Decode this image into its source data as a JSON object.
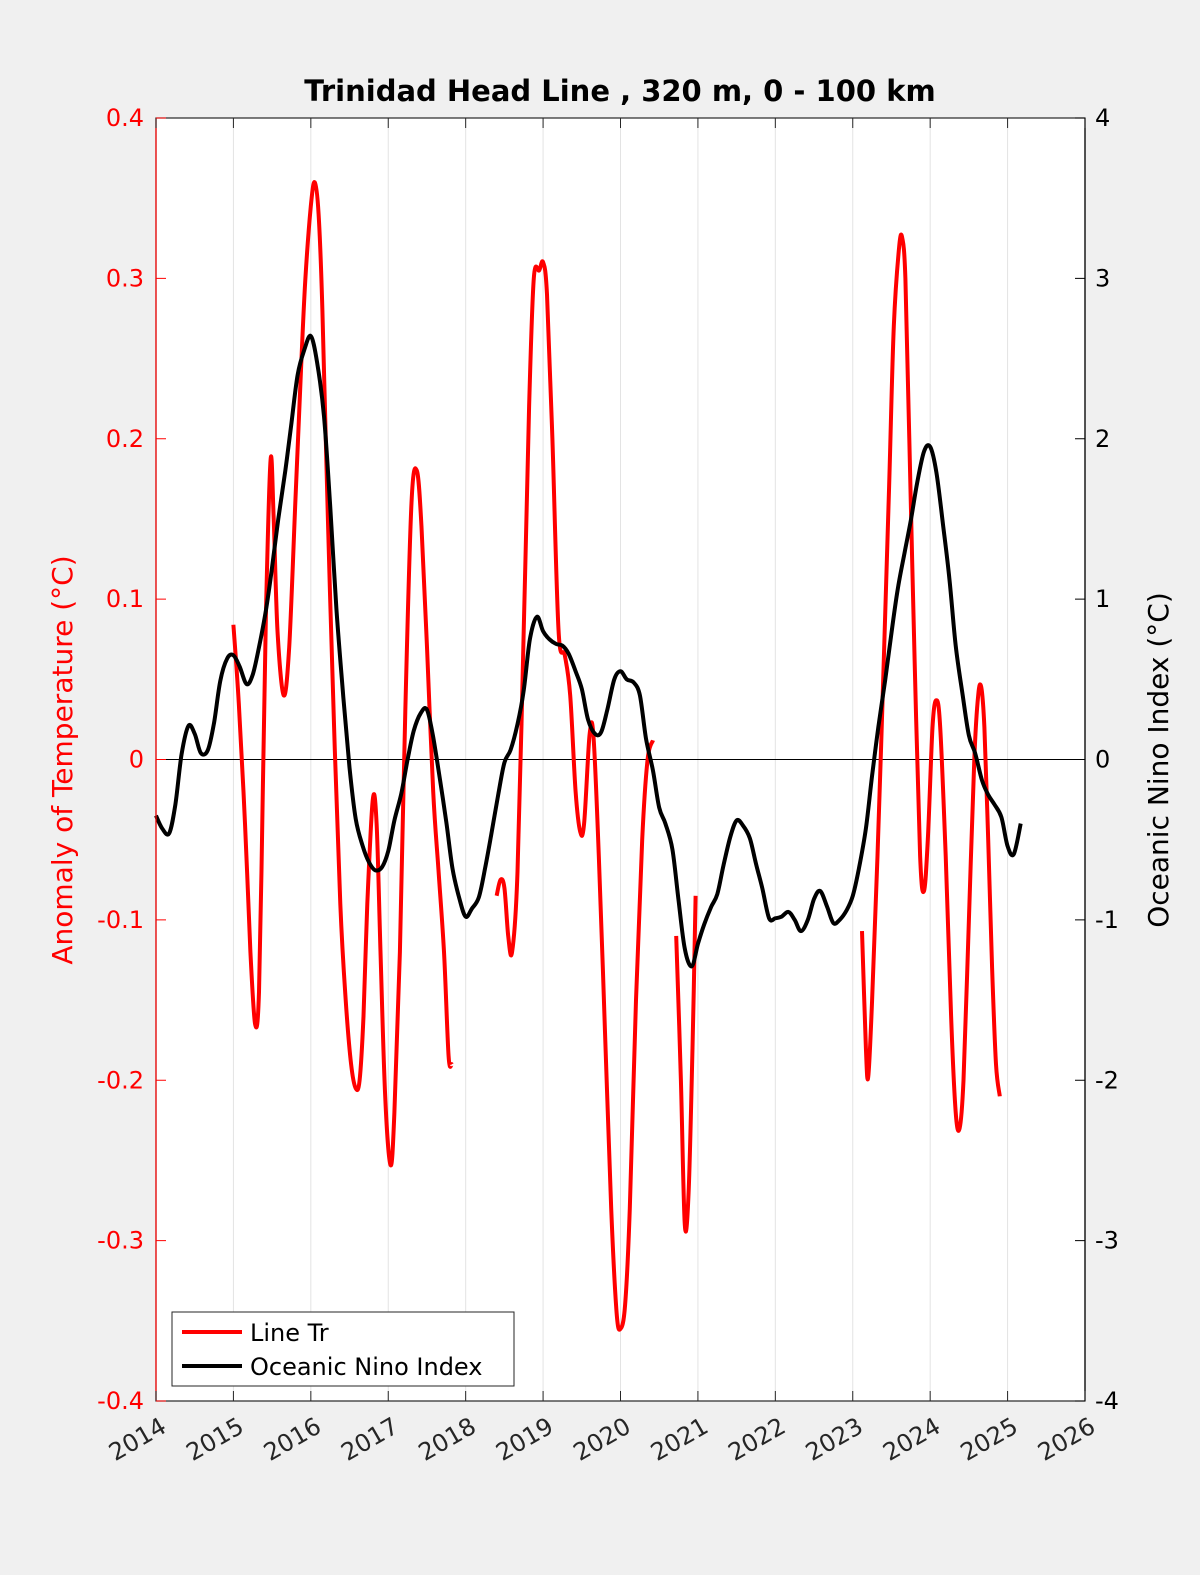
{
  "chart_data": {
    "type": "line",
    "title": "Trinidad Head Line , 320 m, 0 - 100 km",
    "ylabel_left": "Anomaly of Temperature (°C)",
    "ylabel_right": "Oceanic Nino Index (°C)",
    "xlim": [
      2014,
      2026
    ],
    "ylim_left": [
      -0.4,
      0.4
    ],
    "ylim_right": [
      -4,
      4
    ],
    "x_ticks": [
      "2014",
      "2015",
      "2016",
      "2017",
      "2018",
      "2019",
      "2020",
      "2021",
      "2022",
      "2023",
      "2024",
      "2025",
      "2026"
    ],
    "y_ticks_left": [
      "-0.4",
      "-0.3",
      "-0.2",
      "-0.1",
      "0",
      "0.1",
      "0.2",
      "0.3",
      "0.4"
    ],
    "y_ticks_right": [
      "-4",
      "-3",
      "-2",
      "-1",
      "0",
      "1",
      "2",
      "3",
      "4"
    ],
    "grid": "vertical",
    "zero_line": true,
    "legend_position": "bottom-left",
    "series": [
      {
        "name": "Line Tr",
        "axis": "left",
        "color": "#ff0000",
        "segments": [
          [
            [
              2015.0,
              0.084
            ],
            [
              2015.07,
              0.035
            ],
            [
              2015.15,
              -0.04
            ],
            [
              2015.22,
              -0.12
            ],
            [
              2015.28,
              -0.165
            ],
            [
              2015.33,
              -0.145
            ],
            [
              2015.38,
              -0.02
            ],
            [
              2015.42,
              0.09
            ],
            [
              2015.48,
              0.187
            ],
            [
              2015.52,
              0.15
            ],
            [
              2015.57,
              0.08
            ],
            [
              2015.65,
              0.04
            ],
            [
              2015.72,
              0.07
            ],
            [
              2015.8,
              0.16
            ],
            [
              2015.87,
              0.24
            ],
            [
              2015.93,
              0.3
            ],
            [
              2016.0,
              0.345
            ],
            [
              2016.05,
              0.36
            ],
            [
              2016.1,
              0.34
            ],
            [
              2016.15,
              0.28
            ],
            [
              2016.22,
              0.15
            ],
            [
              2016.3,
              0.02
            ],
            [
              2016.38,
              -0.09
            ],
            [
              2016.45,
              -0.15
            ],
            [
              2016.52,
              -0.19
            ],
            [
              2016.58,
              -0.205
            ],
            [
              2016.63,
              -0.2
            ],
            [
              2016.68,
              -0.16
            ],
            [
              2016.73,
              -0.09
            ],
            [
              2016.8,
              -0.025
            ],
            [
              2016.85,
              -0.04
            ],
            [
              2016.9,
              -0.12
            ],
            [
              2016.96,
              -0.21
            ],
            [
              2017.03,
              -0.253
            ],
            [
              2017.08,
              -0.22
            ],
            [
              2017.15,
              -0.12
            ],
            [
              2017.22,
              0.03
            ],
            [
              2017.3,
              0.16
            ],
            [
              2017.37,
              0.18
            ],
            [
              2017.43,
              0.145
            ],
            [
              2017.5,
              0.07
            ],
            [
              2017.58,
              -0.02
            ],
            [
              2017.65,
              -0.07
            ],
            [
              2017.72,
              -0.12
            ],
            [
              2017.78,
              -0.185
            ],
            [
              2017.82,
              -0.19
            ]
          ],
          [
            [
              2018.4,
              -0.085
            ],
            [
              2018.45,
              -0.075
            ],
            [
              2018.5,
              -0.08
            ],
            [
              2018.55,
              -0.11
            ],
            [
              2018.6,
              -0.12
            ],
            [
              2018.67,
              -0.07
            ],
            [
              2018.75,
              0.08
            ],
            [
              2018.82,
              0.22
            ],
            [
              2018.88,
              0.3
            ],
            [
              2018.95,
              0.305
            ],
            [
              2019.0,
              0.31
            ],
            [
              2019.05,
              0.29
            ],
            [
              2019.12,
              0.2
            ],
            [
              2019.2,
              0.08
            ],
            [
              2019.28,
              0.065
            ],
            [
              2019.35,
              0.04
            ],
            [
              2019.42,
              -0.02
            ],
            [
              2019.48,
              -0.045
            ],
            [
              2019.53,
              -0.04
            ],
            [
              2019.6,
              0.015
            ],
            [
              2019.65,
              0.015
            ],
            [
              2019.72,
              -0.06
            ],
            [
              2019.8,
              -0.17
            ],
            [
              2019.88,
              -0.28
            ],
            [
              2019.95,
              -0.345
            ],
            [
              2020.0,
              -0.355
            ],
            [
              2020.06,
              -0.34
            ],
            [
              2020.12,
              -0.28
            ],
            [
              2020.2,
              -0.15
            ],
            [
              2020.28,
              -0.05
            ],
            [
              2020.35,
              0.0
            ],
            [
              2020.42,
              0.012
            ]
          ],
          [
            [
              2020.72,
              -0.11
            ],
            [
              2020.78,
              -0.2
            ],
            [
              2020.83,
              -0.29
            ],
            [
              2020.88,
              -0.27
            ],
            [
              2020.93,
              -0.18
            ],
            [
              2020.97,
              -0.085
            ]
          ],
          [
            [
              2023.12,
              -0.107
            ],
            [
              2023.17,
              -0.18
            ],
            [
              2023.2,
              -0.198
            ],
            [
              2023.25,
              -0.15
            ],
            [
              2023.32,
              -0.06
            ],
            [
              2023.4,
              0.06
            ],
            [
              2023.47,
              0.17
            ],
            [
              2023.53,
              0.27
            ],
            [
              2023.6,
              0.32
            ],
            [
              2023.64,
              0.325
            ],
            [
              2023.68,
              0.3
            ],
            [
              2023.73,
              0.2
            ],
            [
              2023.8,
              0.06
            ],
            [
              2023.87,
              -0.06
            ],
            [
              2023.92,
              -0.082
            ],
            [
              2023.97,
              -0.05
            ],
            [
              2024.03,
              0.02
            ],
            [
              2024.08,
              0.037
            ],
            [
              2024.13,
              0.02
            ],
            [
              2024.2,
              -0.06
            ],
            [
              2024.27,
              -0.16
            ],
            [
              2024.33,
              -0.22
            ],
            [
              2024.38,
              -0.23
            ],
            [
              2024.43,
              -0.2
            ],
            [
              2024.5,
              -0.1
            ],
            [
              2024.57,
              0.0
            ],
            [
              2024.62,
              0.04
            ],
            [
              2024.66,
              0.045
            ],
            [
              2024.7,
              0.02
            ],
            [
              2024.75,
              -0.05
            ],
            [
              2024.8,
              -0.13
            ],
            [
              2024.85,
              -0.19
            ],
            [
              2024.9,
              -0.21
            ]
          ]
        ]
      },
      {
        "name": "Oceanic Nino Index",
        "axis": "right",
        "color": "#000000",
        "segments": [
          [
            [
              2014.0,
              -0.35
            ],
            [
              2014.08,
              -0.43
            ],
            [
              2014.17,
              -0.46
            ],
            [
              2014.25,
              -0.28
            ],
            [
              2014.33,
              0.03
            ],
            [
              2014.42,
              0.21
            ],
            [
              2014.5,
              0.16
            ],
            [
              2014.58,
              0.04
            ],
            [
              2014.67,
              0.06
            ],
            [
              2014.75,
              0.23
            ],
            [
              2014.83,
              0.49
            ],
            [
              2014.92,
              0.63
            ],
            [
              2015.0,
              0.65
            ],
            [
              2015.08,
              0.58
            ],
            [
              2015.17,
              0.47
            ],
            [
              2015.25,
              0.53
            ],
            [
              2015.33,
              0.7
            ],
            [
              2015.42,
              0.93
            ],
            [
              2015.5,
              1.2
            ],
            [
              2015.58,
              1.5
            ],
            [
              2015.67,
              1.8
            ],
            [
              2015.75,
              2.1
            ],
            [
              2015.83,
              2.4
            ],
            [
              2015.92,
              2.56
            ],
            [
              2016.0,
              2.64
            ],
            [
              2016.08,
              2.48
            ],
            [
              2016.17,
              2.14
            ],
            [
              2016.25,
              1.58
            ],
            [
              2016.33,
              0.94
            ],
            [
              2016.42,
              0.39
            ],
            [
              2016.5,
              -0.05
            ],
            [
              2016.58,
              -0.37
            ],
            [
              2016.67,
              -0.54
            ],
            [
              2016.75,
              -0.64
            ],
            [
              2016.83,
              -0.69
            ],
            [
              2016.92,
              -0.67
            ],
            [
              2017.0,
              -0.57
            ],
            [
              2017.08,
              -0.38
            ],
            [
              2017.17,
              -0.21
            ],
            [
              2017.25,
              0.0
            ],
            [
              2017.33,
              0.18
            ],
            [
              2017.42,
              0.29
            ],
            [
              2017.5,
              0.31
            ],
            [
              2017.58,
              0.14
            ],
            [
              2017.67,
              -0.13
            ],
            [
              2017.75,
              -0.39
            ],
            [
              2017.83,
              -0.68
            ],
            [
              2017.92,
              -0.87
            ],
            [
              2018.0,
              -0.98
            ],
            [
              2018.08,
              -0.93
            ],
            [
              2018.17,
              -0.86
            ],
            [
              2018.25,
              -0.68
            ],
            [
              2018.33,
              -0.47
            ],
            [
              2018.42,
              -0.22
            ],
            [
              2018.5,
              -0.02
            ],
            [
              2018.58,
              0.06
            ],
            [
              2018.67,
              0.22
            ],
            [
              2018.75,
              0.43
            ],
            [
              2018.83,
              0.75
            ],
            [
              2018.92,
              0.89
            ],
            [
              2019.0,
              0.8
            ],
            [
              2019.08,
              0.75
            ],
            [
              2019.17,
              0.72
            ],
            [
              2019.25,
              0.71
            ],
            [
              2019.33,
              0.66
            ],
            [
              2019.42,
              0.55
            ],
            [
              2019.5,
              0.44
            ],
            [
              2019.58,
              0.25
            ],
            [
              2019.67,
              0.16
            ],
            [
              2019.75,
              0.17
            ],
            [
              2019.83,
              0.31
            ],
            [
              2019.92,
              0.5
            ],
            [
              2020.0,
              0.55
            ],
            [
              2020.08,
              0.5
            ],
            [
              2020.17,
              0.48
            ],
            [
              2020.25,
              0.4
            ],
            [
              2020.33,
              0.13
            ],
            [
              2020.42,
              -0.07
            ],
            [
              2020.5,
              -0.3
            ],
            [
              2020.58,
              -0.4
            ],
            [
              2020.67,
              -0.56
            ],
            [
              2020.75,
              -0.88
            ],
            [
              2020.83,
              -1.18
            ],
            [
              2020.92,
              -1.29
            ],
            [
              2021.0,
              -1.15
            ],
            [
              2021.08,
              -1.03
            ],
            [
              2021.17,
              -0.92
            ],
            [
              2021.25,
              -0.84
            ],
            [
              2021.33,
              -0.66
            ],
            [
              2021.42,
              -0.48
            ],
            [
              2021.5,
              -0.38
            ],
            [
              2021.58,
              -0.41
            ],
            [
              2021.67,
              -0.49
            ],
            [
              2021.75,
              -0.65
            ],
            [
              2021.83,
              -0.8
            ],
            [
              2021.92,
              -0.99
            ],
            [
              2022.0,
              -0.99
            ],
            [
              2022.08,
              -0.98
            ],
            [
              2022.17,
              -0.95
            ],
            [
              2022.25,
              -1.0
            ],
            [
              2022.33,
              -1.07
            ],
            [
              2022.42,
              -1.0
            ],
            [
              2022.5,
              -0.87
            ],
            [
              2022.58,
              -0.82
            ],
            [
              2022.67,
              -0.92
            ],
            [
              2022.75,
              -1.02
            ],
            [
              2022.83,
              -1.0
            ],
            [
              2022.92,
              -0.94
            ],
            [
              2023.0,
              -0.85
            ],
            [
              2023.08,
              -0.68
            ],
            [
              2023.17,
              -0.43
            ],
            [
              2023.25,
              -0.1
            ],
            [
              2023.33,
              0.2
            ],
            [
              2023.42,
              0.5
            ],
            [
              2023.5,
              0.79
            ],
            [
              2023.58,
              1.06
            ],
            [
              2023.67,
              1.29
            ],
            [
              2023.75,
              1.49
            ],
            [
              2023.83,
              1.72
            ],
            [
              2023.92,
              1.92
            ],
            [
              2024.0,
              1.95
            ],
            [
              2024.08,
              1.79
            ],
            [
              2024.17,
              1.45
            ],
            [
              2024.25,
              1.12
            ],
            [
              2024.33,
              0.71
            ],
            [
              2024.42,
              0.4
            ],
            [
              2024.5,
              0.15
            ],
            [
              2024.58,
              0.04
            ],
            [
              2024.67,
              -0.13
            ],
            [
              2024.75,
              -0.22
            ],
            [
              2024.83,
              -0.28
            ],
            [
              2024.92,
              -0.36
            ],
            [
              2025.0,
              -0.54
            ],
            [
              2025.08,
              -0.59
            ],
            [
              2025.17,
              -0.4
            ]
          ]
        ]
      }
    ]
  }
}
